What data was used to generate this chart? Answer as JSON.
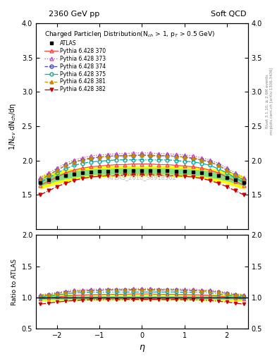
{
  "title_left": "2360 GeV pp",
  "title_right": "Soft QCD",
  "right_label1": "Rivet 3.1.10, ≥ 2.6M events",
  "right_label2": "mcplots.cern.ch [arXiv:1306.3436]",
  "watermark": "ATLAS_2010_S8918562",
  "main_title": "Charged Particleη Distribution(N$_{ch}$ > 1, p$_T$ > 0.5 GeV)",
  "ylabel_main": "1/N$_{ev}$ dN$_{ch}$/dη",
  "ylabel_ratio": "Ratio to ATLAS",
  "xlabel": "η",
  "eta": [
    -2.4,
    -2.2,
    -2.0,
    -1.8,
    -1.6,
    -1.4,
    -1.2,
    -1.0,
    -0.8,
    -0.6,
    -0.4,
    -0.2,
    0.0,
    0.2,
    0.4,
    0.6,
    0.8,
    1.0,
    1.2,
    1.4,
    1.6,
    1.8,
    2.0,
    2.2,
    2.4
  ],
  "atlas_data": [
    1.68,
    1.72,
    1.75,
    1.78,
    1.8,
    1.82,
    1.83,
    1.84,
    1.84,
    1.85,
    1.85,
    1.85,
    1.85,
    1.85,
    1.85,
    1.85,
    1.84,
    1.84,
    1.83,
    1.82,
    1.8,
    1.78,
    1.75,
    1.72,
    1.68
  ],
  "atlas_err": [
    0.09,
    0.09,
    0.08,
    0.08,
    0.08,
    0.07,
    0.07,
    0.07,
    0.07,
    0.07,
    0.07,
    0.07,
    0.07,
    0.07,
    0.07,
    0.07,
    0.07,
    0.07,
    0.07,
    0.07,
    0.08,
    0.08,
    0.08,
    0.09,
    0.09
  ],
  "series": [
    {
      "label": "Pythia 6.428 370",
      "color": "#ff4444",
      "linestyle": "-",
      "marker": "^",
      "markerfacecolor": "none",
      "values": [
        1.64,
        1.7,
        1.76,
        1.82,
        1.86,
        1.89,
        1.91,
        1.92,
        1.93,
        1.94,
        1.94,
        1.95,
        1.95,
        1.95,
        1.94,
        1.94,
        1.93,
        1.92,
        1.91,
        1.89,
        1.86,
        1.82,
        1.76,
        1.7,
        1.64
      ]
    },
    {
      "label": "Pythia 6.428 373",
      "color": "#cc44cc",
      "linestyle": ":",
      "marker": "^",
      "markerfacecolor": "none",
      "values": [
        1.75,
        1.82,
        1.89,
        1.96,
        2.01,
        2.04,
        2.07,
        2.08,
        2.09,
        2.1,
        2.1,
        2.11,
        2.11,
        2.11,
        2.1,
        2.1,
        2.09,
        2.08,
        2.07,
        2.04,
        2.01,
        1.96,
        1.89,
        1.82,
        1.75
      ]
    },
    {
      "label": "Pythia 6.428 374",
      "color": "#4444cc",
      "linestyle": "--",
      "marker": "o",
      "markerfacecolor": "none",
      "values": [
        1.72,
        1.79,
        1.86,
        1.93,
        1.98,
        2.01,
        2.03,
        2.05,
        2.06,
        2.07,
        2.07,
        2.07,
        2.08,
        2.07,
        2.07,
        2.07,
        2.06,
        2.05,
        2.03,
        2.01,
        1.98,
        1.93,
        1.86,
        1.79,
        1.72
      ]
    },
    {
      "label": "Pythia 6.428 375",
      "color": "#00aaaa",
      "linestyle": "-.",
      "marker": "o",
      "markerfacecolor": "none",
      "values": [
        1.68,
        1.75,
        1.82,
        1.88,
        1.93,
        1.96,
        1.98,
        1.99,
        2.0,
        2.01,
        2.01,
        2.01,
        2.01,
        2.01,
        2.01,
        2.01,
        2.0,
        1.99,
        1.98,
        1.96,
        1.93,
        1.88,
        1.82,
        1.75,
        1.68
      ]
    },
    {
      "label": "Pythia 6.428 381",
      "color": "#cc8800",
      "linestyle": "--",
      "marker": "^",
      "markerfacecolor": "#cc8800",
      "values": [
        1.72,
        1.79,
        1.86,
        1.93,
        1.98,
        2.01,
        2.04,
        2.05,
        2.06,
        2.07,
        2.07,
        2.08,
        2.08,
        2.08,
        2.07,
        2.07,
        2.06,
        2.05,
        2.04,
        2.01,
        1.98,
        1.93,
        1.86,
        1.79,
        1.72
      ]
    },
    {
      "label": "Pythia 6.428 382",
      "color": "#cc0000",
      "linestyle": "-.",
      "marker": "v",
      "markerfacecolor": "#cc0000",
      "values": [
        1.5,
        1.56,
        1.62,
        1.67,
        1.71,
        1.74,
        1.76,
        1.77,
        1.78,
        1.78,
        1.79,
        1.79,
        1.79,
        1.79,
        1.79,
        1.78,
        1.78,
        1.77,
        1.76,
        1.74,
        1.71,
        1.67,
        1.62,
        1.56,
        1.5
      ]
    }
  ],
  "ylim_main": [
    1.0,
    4.0
  ],
  "ylim_ratio": [
    0.5,
    2.0
  ],
  "yticks_main": [
    1.5,
    2.0,
    2.5,
    3.0,
    3.5,
    4.0
  ],
  "yticks_ratio": [
    0.5,
    1.0,
    1.5,
    2.0
  ],
  "xlim": [
    -2.5,
    2.5
  ],
  "xticks": [
    -2,
    -1,
    0,
    1,
    2
  ]
}
